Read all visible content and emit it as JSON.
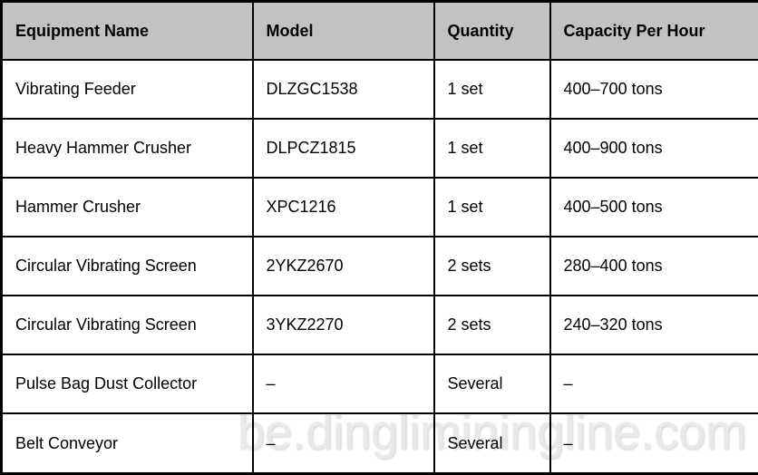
{
  "table": {
    "columns": [
      "Equipment Name",
      "Model",
      "Quantity",
      "Capacity Per Hour"
    ],
    "rows": [
      [
        "Vibrating Feeder",
        "DLZGC1538",
        "1 set",
        "400–700 tons"
      ],
      [
        "Heavy Hammer Crusher",
        "DLPCZ1815",
        "1 set",
        "400–900 tons"
      ],
      [
        "Hammer Crusher",
        "XPC1216",
        "1 set",
        "400–500 tons"
      ],
      [
        "Circular Vibrating Screen",
        "2YKZ2670",
        "2 sets",
        "280–400 tons"
      ],
      [
        "Circular Vibrating Screen",
        "3YKZ2270",
        "2 sets",
        "240–320 tons"
      ],
      [
        "Pulse Bag Dust Collector",
        "–",
        "Several",
        "–"
      ],
      [
        "Belt Conveyor",
        "–",
        "Several",
        "–"
      ]
    ]
  },
  "watermark": "be.dingliminingline.com",
  "colors": {
    "header_bg": "#c2c2c2",
    "border": "#000000",
    "text": "#000000",
    "watermark": "#e9e9e9"
  }
}
